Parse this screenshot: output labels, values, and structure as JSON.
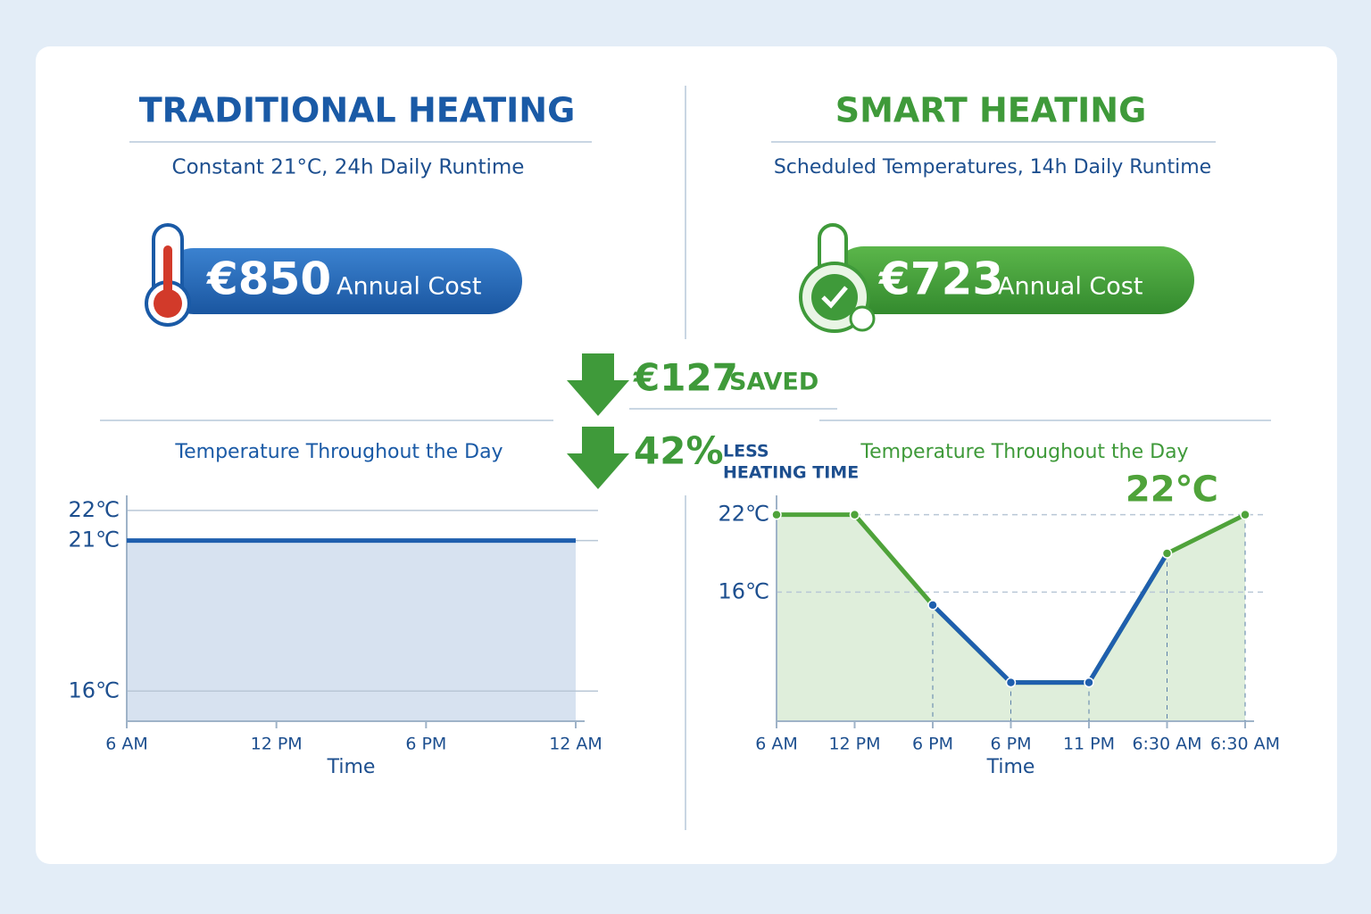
{
  "panels": [
    {
      "title": "TRADITIONAL HEATING",
      "subtitle": "Constant 21°C, 24h Daily Runtime",
      "cost": "€850",
      "cost_label": "Annual Cost"
    },
    {
      "title": "SMART HEATING",
      "subtitle": "Scheduled Temperatures, 14h Daily Runtime",
      "cost": "€723",
      "cost_label": "Annual Cost"
    }
  ],
  "savings": [
    {
      "value": "€127",
      "label": "SAVED"
    },
    {
      "value": "42%",
      "label": [
        "LESS",
        "HEATING TIME"
      ]
    }
  ],
  "chart_data": [
    {
      "type": "line",
      "title": "Temperature Throughout the Day",
      "x_label": "Time",
      "categories": [
        "6 AM",
        "12 PM",
        "6 PM",
        "12 AM"
      ],
      "series": [
        {
          "color": "#1f5fae",
          "values": [
            21,
            21,
            21,
            21
          ]
        }
      ],
      "ylim": [
        15,
        22.5
      ],
      "yticks": [
        {
          "value": 16,
          "label": "16℃"
        },
        {
          "value": 21,
          "label": "21℃"
        },
        {
          "value": 22,
          "label": "22℃"
        }
      ],
      "grid": true
    },
    {
      "type": "line",
      "title": "Temperature Throughout the Day",
      "x_label": "Time",
      "categories": [
        "6 AM",
        "12 PM",
        "6 PM",
        "6 PM",
        "11 PM",
        "6:30 AM",
        "6:30 AM"
      ],
      "series": [
        {
          "color": "#4fa33a",
          "values": [
            22,
            22,
            15,
            9,
            9,
            19,
            22
          ],
          "value_labels": [
            null,
            null,
            null,
            null,
            null,
            null,
            "22℃"
          ]
        }
      ],
      "ylim": [
        6,
        23.5
      ],
      "yticks": [
        {
          "value": 16,
          "label": "16℃"
        },
        {
          "value": 22,
          "label": "22℃"
        }
      ],
      "grid": true
    }
  ]
}
